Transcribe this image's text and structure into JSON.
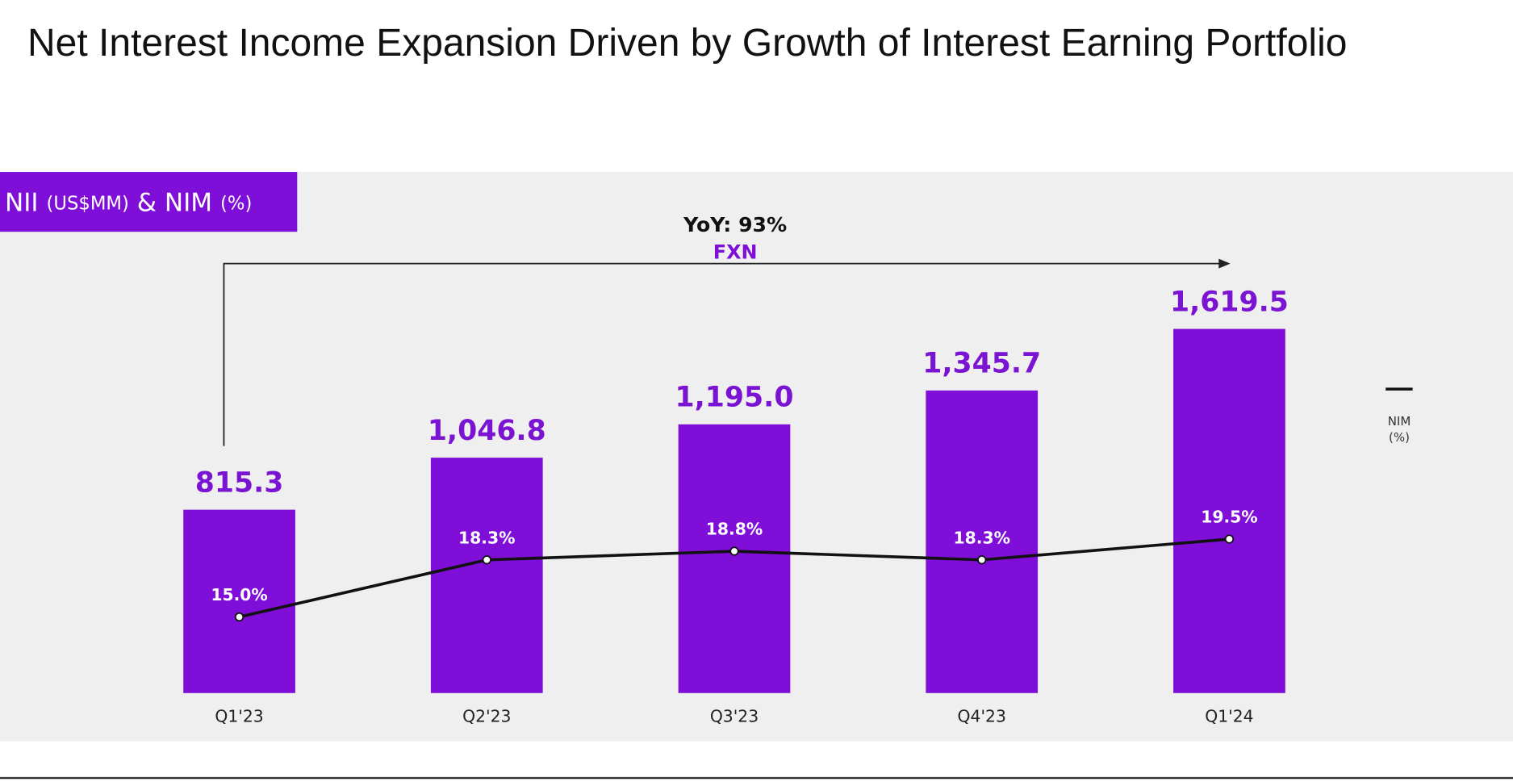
{
  "chart_data": {
    "type": "bar_line",
    "title": "Net Interest Income Expansion Driven by Growth of Interest Earning Portfolio",
    "badge": [
      "(US$MM)",
      "& NIM",
      "(%)"
    ],
    "annotations": [
      "YoY: 93%",
      "FXN"
    ],
    "categories": [
      "Q1'23",
      "Q2'23",
      "Q3'23",
      "Q4'23",
      "Q1'24"
    ],
    "series": [
      {
        "name": "NII",
        "color": "#7f0ed8",
        "label_color": "#7a14d2",
        "values": [
          815.3,
          1046.8,
          1195.0,
          1345.7,
          1619.5
        ],
        "value_labels": [
          "815.3",
          "1,046.8",
          "1,195.0",
          "1,345.7",
          "1,619.5"
        ]
      },
      {
        "name": "NIM (%)",
        "color": "#111111",
        "axis": "y2",
        "values": [
          15.0,
          18.3,
          18.8,
          18.3,
          19.5
        ],
        "value_labels": [
          "15.0%",
          "18.3%",
          "18.8%",
          "18.3%",
          "19.5%"
        ]
      }
    ],
    "ylim": [
      0,
      2000
    ],
    "y2lim": [
      10.6,
      36.6
    ],
    "grid": false
  }
}
